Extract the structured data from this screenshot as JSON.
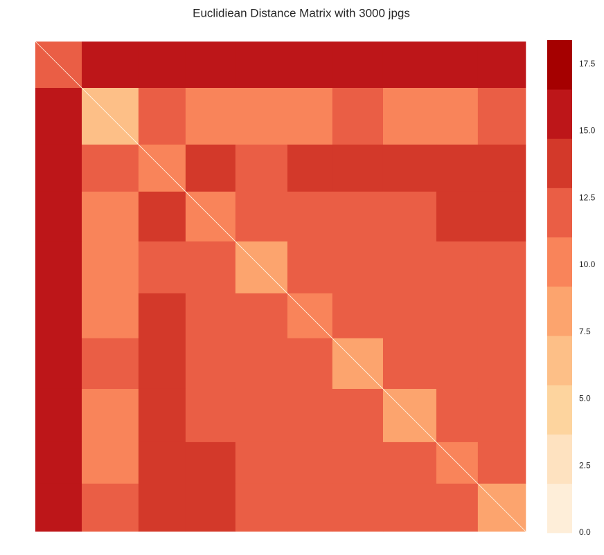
{
  "chart_data": {
    "type": "heatmap",
    "title": "Euclidiean Distance Matrix with 3000 jpgs",
    "edges": [
      0,
      284,
      631,
      919,
      1224,
      1542,
      1817,
      2127,
      2453,
      2707,
      3000
    ],
    "values": [
      [
        11.5,
        15.8,
        15.5,
        15.2,
        15.0,
        15.2,
        15.3,
        15.6,
        15.8,
        16.0
      ],
      [
        15.8,
        7.0,
        11.5,
        11.0,
        10.5,
        11.0,
        11.2,
        10.8,
        11.0,
        11.5
      ],
      [
        15.5,
        11.5,
        10.5,
        13.0,
        12.8,
        13.2,
        13.0,
        13.8,
        13.5,
        13.8
      ],
      [
        15.2,
        11.0,
        13.0,
        9.5,
        12.5,
        12.8,
        12.5,
        12.8,
        13.2,
        13.0
      ],
      [
        15.0,
        10.5,
        12.8,
        12.5,
        9.0,
        12.0,
        12.3,
        12.5,
        12.0,
        12.5
      ],
      [
        15.2,
        11.0,
        13.2,
        12.8,
        12.0,
        10.0,
        12.5,
        12.8,
        12.6,
        12.8
      ],
      [
        15.3,
        11.2,
        13.0,
        12.5,
        12.3,
        12.5,
        9.0,
        12.3,
        12.0,
        12.4
      ],
      [
        15.6,
        10.8,
        13.8,
        12.8,
        12.5,
        12.8,
        12.3,
        9.0,
        12.0,
        11.5
      ],
      [
        15.8,
        11.0,
        13.5,
        13.2,
        12.0,
        12.6,
        12.0,
        12.0,
        9.5,
        11.5
      ],
      [
        16.0,
        11.5,
        13.8,
        13.0,
        12.5,
        12.8,
        12.4,
        11.5,
        11.5,
        9.0
      ]
    ],
    "clim": [
      0,
      18.4
    ],
    "colors": [
      "#feeed9",
      "#fee2c0",
      "#fdd49e",
      "#fdbf87",
      "#fca46e",
      "#f9845a",
      "#ea5e45",
      "#d3392a",
      "#bd1619",
      "#a50000"
    ],
    "cticks": [
      {
        "value": 0,
        "label": "0.0"
      },
      {
        "value": 2.5,
        "label": "2.5"
      },
      {
        "value": 5,
        "label": "5.0"
      },
      {
        "value": 7.5,
        "label": "7.5"
      },
      {
        "value": 10,
        "label": "10.0"
      },
      {
        "value": 12.5,
        "label": "12.5"
      },
      {
        "value": 15,
        "label": "15.0"
      },
      {
        "value": 17.5,
        "label": "17.5"
      }
    ]
  }
}
